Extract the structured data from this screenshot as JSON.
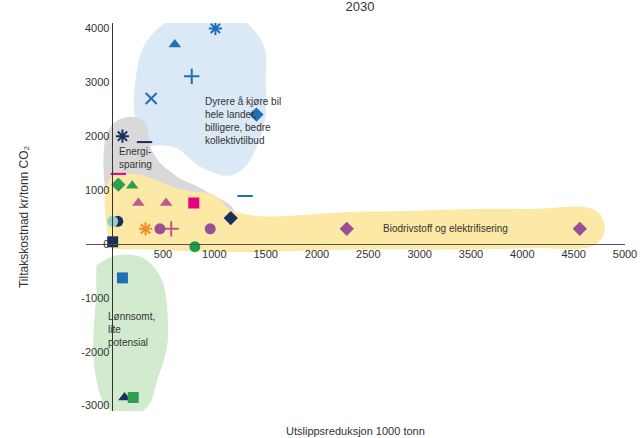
{
  "chart_data": {
    "type": "scatter",
    "title": "2030",
    "x_label": "Utslippsreduksjon 1000 tonn",
    "y_label": "Tiltakskostnad kr/tonn CO₂",
    "xlim": [
      -250,
      5000
    ],
    "ylim": [
      -3100,
      4100
    ],
    "xticks": [
      500,
      1000,
      1500,
      2000,
      2500,
      3000,
      3500,
      4000,
      4500,
      5000
    ],
    "yticks": [
      -3000,
      -2000,
      -1000,
      0,
      1000,
      2000,
      3000,
      4000
    ],
    "grid": false,
    "regions": [
      {
        "color": "#dbe8f6",
        "x": [
          250,
          230,
          400,
          800,
          1100,
          1450,
          1500,
          1450,
          1200,
          900,
          600,
          350
        ],
        "y": [
          2000,
          3000,
          3900,
          4300,
          4300,
          3800,
          3000,
          2000,
          1300,
          1400,
          1800,
          1800
        ]
      },
      {
        "color": "#d9d9d9",
        "x": [
          -50,
          0,
          300,
          400,
          600,
          900,
          1200,
          1150,
          800,
          350,
          100,
          -30
        ],
        "y": [
          800,
          2200,
          2300,
          1700,
          1300,
          1000,
          600,
          400,
          700,
          900,
          600,
          200
        ]
      },
      {
        "color": "#fce9a6",
        "x": [
          -20,
          -20,
          200,
          700,
          1000,
          1200,
          2500,
          4000,
          4750,
          4750,
          4000,
          2500,
          1000,
          300,
          0
        ],
        "y": [
          0,
          1200,
          1300,
          1000,
          900,
          600,
          600,
          650,
          560,
          50,
          -80,
          -100,
          -150,
          -100,
          -100
        ]
      },
      {
        "color": "#d2ebcf",
        "x": [
          -150,
          100,
          400,
          550,
          450,
          300,
          0,
          -150,
          -150
        ],
        "y": [
          -400,
          -200,
          -400,
          -1500,
          -2500,
          -3100,
          -3100,
          -2500,
          -1000
        ]
      }
    ],
    "annotations": [
      {
        "text": "Dyrere å kjøre bil\nhele landet,\nbilligere, bedre\nkollektivtilbud",
        "x": 885,
        "y": 2290
      },
      {
        "text": "Energi-\nsparing",
        "x": 50,
        "y": 1600
      },
      {
        "text": "Biodrivstoff og elektrifisering",
        "x": 2620,
        "y": 280
      },
      {
        "text": "Lønnsomt,\nlite\npotensial",
        "x": -60,
        "y": -1590
      }
    ],
    "series": [
      {
        "marker": "triangle",
        "x": [
          615,
          200,
          260,
          530,
          125
        ],
        "y": [
          3700,
          1080,
          760,
          760,
          -2850
        ],
        "colors": [
          "#1f6fb5",
          "#2e9e4f",
          "#c2578d",
          "#c2578d",
          "#1b2f5e"
        ]
      },
      {
        "marker": "asterisk",
        "x": [
          1010,
          105,
          330
        ],
        "y": [
          4000,
          2000,
          280
        ],
        "colors": [
          "#1f6fb5",
          "#1b2f5e",
          "#f28c28"
        ]
      },
      {
        "marker": "plus",
        "x": [
          780,
          580
        ],
        "y": [
          3110,
          280
        ],
        "colors": [
          "#1f6fb5",
          "#c2578d"
        ]
      },
      {
        "marker": "x",
        "x": [
          385
        ],
        "y": [
          2700
        ],
        "colors": [
          "#1f6fb5"
        ]
      },
      {
        "marker": "diamond",
        "x": [
          1410,
          1160,
          65,
          2290,
          4560
        ],
        "y": [
          2400,
          480,
          1100,
          280,
          280
        ],
        "colors": [
          "#1f6fb5",
          "#1b2f5e",
          "#2e9e4f",
          "#9b4f96",
          "#9b4f96"
        ]
      },
      {
        "marker": "dash",
        "x": [
          320,
          1300,
          65
        ],
        "y": [
          1890,
          890,
          1300
        ],
        "colors": [
          "#1b2f5e",
          "#1f6fb5",
          "#e6007e"
        ]
      },
      {
        "marker": "square",
        "x": [
          10,
          800,
          105,
          210
        ],
        "y": [
          40,
          760,
          -630,
          -2850
        ],
        "colors": [
          "#1b2f5e",
          "#e6007e",
          "#1f6fb5",
          "#2e9e4f"
        ]
      },
      {
        "marker": "circle",
        "x": [
          60,
          10,
          470,
          960,
          810
        ],
        "y": [
          420,
          420,
          280,
          280,
          -50
        ],
        "colors": [
          "#1b2f5e",
          "#8fd0c8",
          "#9b4f96",
          "#9b4f96",
          "#1a9e4a"
        ]
      }
    ]
  }
}
